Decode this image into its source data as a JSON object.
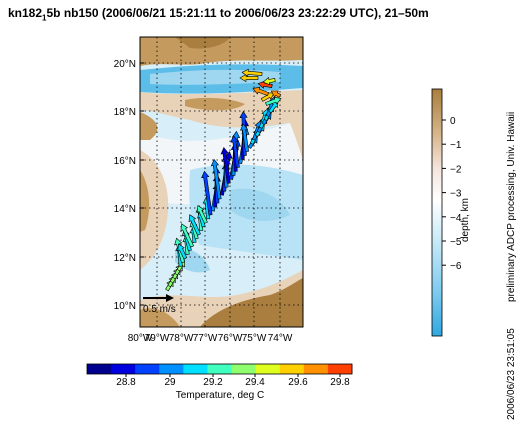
{
  "title": {
    "main": "kn182",
    "sub": "1",
    "rest": "5b nb150 (2006/06/21 15:21:11 to 2006/06/23 23:22:29 UTC), 21–50m"
  },
  "map": {
    "lat_ticks": [
      "20°N",
      "18°N",
      "16°N",
      "14°N",
      "12°N",
      "10°N"
    ],
    "lon_ticks": [
      "80°W",
      "79°W",
      "78°W",
      "77°W",
      "76°W",
      "75°W",
      "74°W"
    ],
    "scale_label": "0.5 m/s",
    "bathymetry_colors": {
      "land_dark": "#a97e3e",
      "land": "#c49a5e",
      "shelf": "#e8d2b8",
      "shallow": "#f6ece4",
      "mid": "#d8eef8",
      "deep": "#9fd6f0",
      "deepest": "#5cbde8"
    }
  },
  "depth_colorbar": {
    "label": "depth, km",
    "ticks": [
      "0",
      "−1",
      "−2",
      "−3",
      "−4",
      "−5",
      "−6"
    ]
  },
  "temp_colorbar": {
    "label": "Temperature, deg C",
    "ticks": [
      "28.8",
      "29",
      "29.2",
      "29.4",
      "29.6",
      "29.8"
    ],
    "colors": [
      "#00008f",
      "#0000df",
      "#0040ff",
      "#0090ff",
      "#00dfff",
      "#40ffbf",
      "#8fff70",
      "#dfff20",
      "#ffd000",
      "#ff9000",
      "#ff4000"
    ]
  },
  "side_text": {
    "credit": "preliminary ADCP processing, Univ. Hawaii",
    "timestamp": "2006/06/23 23:51:05"
  }
}
